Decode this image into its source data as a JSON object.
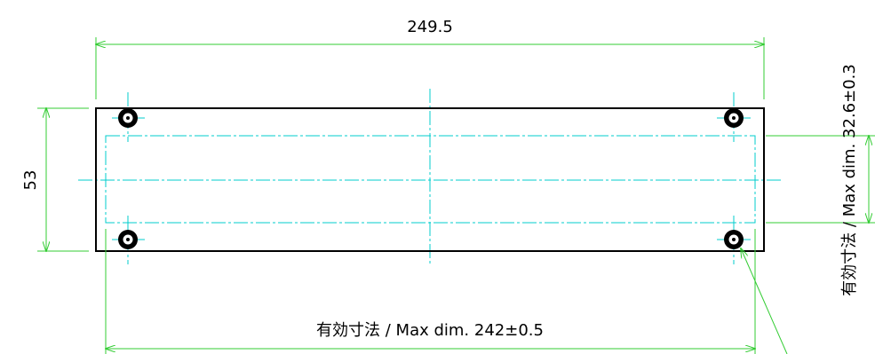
{
  "dimensions": {
    "overall_width": "249.5",
    "overall_height": "53",
    "max_dim_width": "有効寸法 / Max dim. 242±0.5",
    "max_dim_height": "有効寸法 / Max dim. 32.6±0.3"
  },
  "colors": {
    "outline": "#000000",
    "dimension_line": "#33cc33",
    "center_line": "#00cccc",
    "hole": "#000000",
    "background": "#ffffff"
  }
}
